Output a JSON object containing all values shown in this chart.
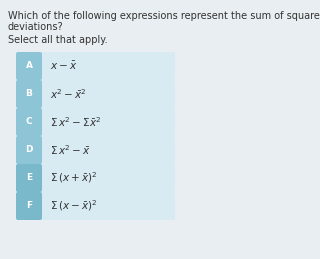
{
  "title_line1": "Which of the following expressions represent the sum of squared",
  "title_line2": "deviations?",
  "subtitle": "Select all that apply.",
  "background_color": "#e8eef2",
  "title_fontsize": 7.0,
  "subtitle_fontsize": 7.0,
  "expr_fontsize": 7.5,
  "label_fontsize": 6.5,
  "options": [
    {
      "label": "A",
      "expr": "$x - \\bar{x}$"
    },
    {
      "label": "B",
      "expr": "$x^2 - \\bar{x}^2$"
    },
    {
      "label": "C",
      "expr": "$\\Sigma\\, x^2 - \\Sigma\\bar{x}^2$"
    },
    {
      "label": "D",
      "expr": "$\\Sigma\\, x^2 - \\bar{x}$"
    },
    {
      "label": "E",
      "expr": "$\\Sigma\\, (x + \\bar{x})^2$"
    },
    {
      "label": "F",
      "expr": "$\\Sigma\\, (x - \\bar{x})^2$"
    }
  ],
  "label_bg_colors": [
    "#8ec5d6",
    "#8ec5d6",
    "#8ec5d6",
    "#8ec5d6",
    "#7ab8cc",
    "#7ab8cc"
  ],
  "box_color": "#d8eaf2",
  "text_color": "#333333",
  "label_text_color": "#ffffff"
}
